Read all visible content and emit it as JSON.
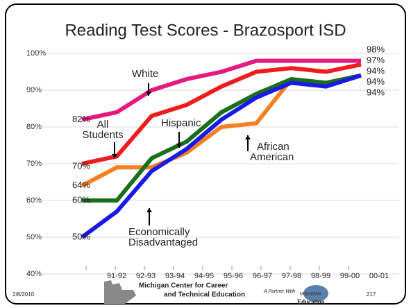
{
  "chart_data": {
    "type": "line",
    "title": "Reading Test Scores - Brazosport ISD",
    "categories": [
      "91-92",
      "92-93",
      "93-94",
      "94-95",
      "95-96",
      "96-97",
      "97-98",
      "98-99",
      "99-00",
      "00-01"
    ],
    "series": [
      {
        "name": "White",
        "color": "#e6197e",
        "values": [
          82,
          84,
          90,
          93,
          95,
          98,
          98,
          98,
          98,
          null
        ],
        "value_labels": [
          "82%",
          null,
          null,
          null,
          null,
          null,
          null,
          null,
          "98%",
          null
        ]
      },
      {
        "name": "All Students",
        "color": "#ee1c1c",
        "values": [
          70,
          72,
          83,
          86,
          91,
          95,
          96,
          95,
          97,
          null
        ],
        "value_labels": [
          "70%",
          null,
          null,
          null,
          null,
          null,
          null,
          null,
          "97%",
          null
        ]
      },
      {
        "name": "Hispanic",
        "color": "#1b6f1b",
        "values": [
          60,
          60,
          71.5,
          76,
          84,
          89,
          93,
          92,
          94,
          null
        ],
        "value_labels": [
          "60%",
          null,
          null,
          null,
          null,
          null,
          null,
          null,
          "94%",
          null
        ]
      },
      {
        "name": "African American",
        "color": "#f57f22",
        "values": [
          64,
          69,
          69,
          73,
          80,
          81,
          93,
          92,
          94,
          null
        ],
        "value_labels": [
          "64%",
          null,
          null,
          null,
          null,
          null,
          null,
          null,
          "94%",
          null
        ]
      },
      {
        "name": "Economically Disadvantaged",
        "color": "#1a1ae6",
        "values": [
          50,
          57,
          68,
          74,
          82,
          88,
          92,
          91,
          94,
          null
        ],
        "value_labels": [
          "50%",
          null,
          null,
          null,
          null,
          null,
          null,
          null,
          "94%",
          null
        ]
      }
    ],
    "annotations": [
      [
        "White"
      ],
      [
        "All",
        "Students"
      ],
      [
        "Hispanic"
      ],
      [
        "African",
        "American"
      ],
      [
        "Economically",
        "Disadvantaged"
      ]
    ],
    "ylim": [
      40,
      100
    ],
    "yticks": [
      {
        "value": 40,
        "label": "40%"
      },
      {
        "value": 50,
        "label": "50%"
      },
      {
        "value": 60,
        "label": "60%"
      },
      {
        "value": 70,
        "label": "70%"
      },
      {
        "value": 80,
        "label": "80%"
      },
      {
        "value": 90,
        "label": "90%"
      },
      {
        "value": 100,
        "label": "100%"
      }
    ],
    "grid": true
  },
  "footer": {
    "date": "2/8/2010",
    "page": "217",
    "org": [
      "Michigan Center for Career",
      "and Technical Education"
    ],
    "partner": "A Partner With",
    "logo": [
      "MICHIGAN",
      "Education"
    ]
  }
}
